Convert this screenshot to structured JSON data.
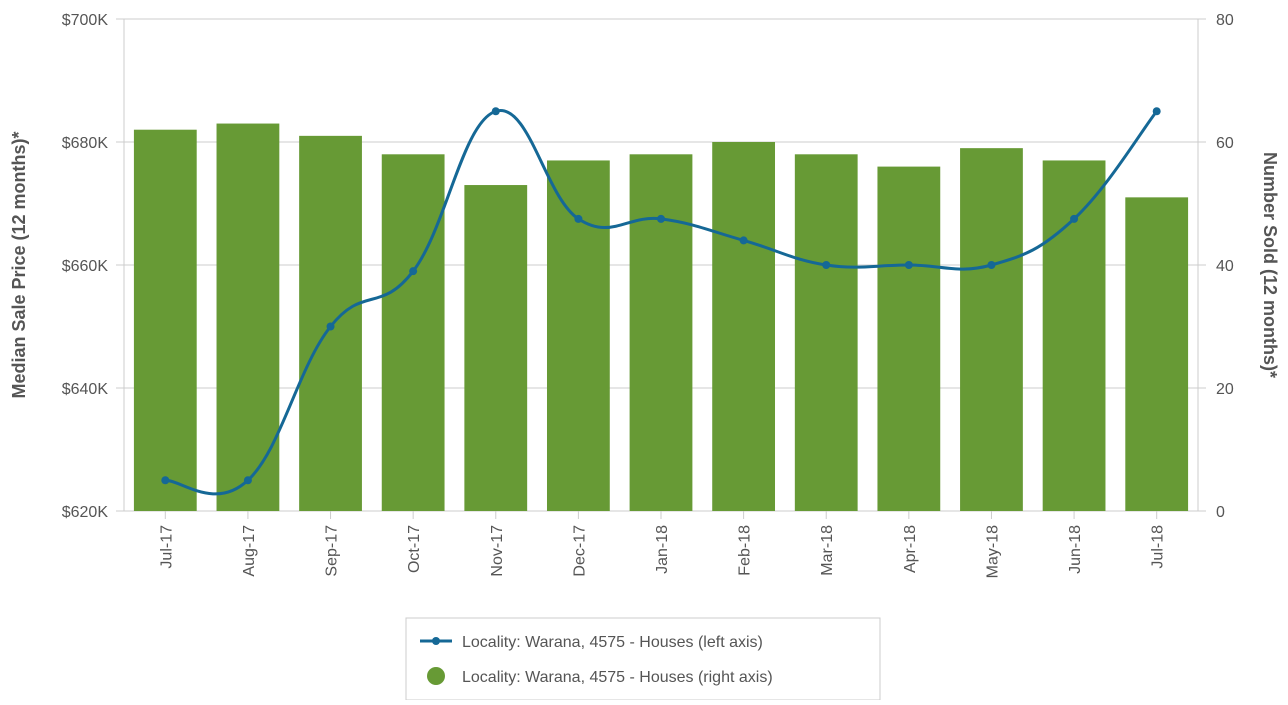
{
  "chart_data": {
    "type": "bar-line",
    "categories": [
      "Jul-17",
      "Aug-17",
      "Sep-17",
      "Oct-17",
      "Nov-17",
      "Dec-17",
      "Jan-18",
      "Feb-18",
      "Mar-18",
      "Apr-18",
      "May-18",
      "Jun-18",
      "Jul-18"
    ],
    "series": [
      {
        "name": "Locality: Warana, 4575 - Houses (left axis)",
        "type": "line",
        "axis": "y",
        "color": "#156896",
        "values": [
          625000,
          625000,
          650000,
          659000,
          685000,
          667500,
          667500,
          664000,
          660000,
          660000,
          660000,
          667500,
          685000
        ]
      },
      {
        "name": "Locality: Warana, 4575 - Houses (right axis)",
        "type": "bar",
        "axis": "y2",
        "color": "#679a35",
        "values": [
          62,
          63,
          61,
          58,
          53,
          57,
          58,
          60,
          58,
          56,
          59,
          57,
          51
        ]
      }
    ],
    "ylabel": "Median Sale Price (12 months)*",
    "y2label": "Number Sold (12 months)*",
    "ylim": [
      620000,
      700000
    ],
    "yticks": [
      {
        "value": 620000,
        "label": "$620K"
      },
      {
        "value": 640000,
        "label": "$640K"
      },
      {
        "value": 660000,
        "label": "$660K"
      },
      {
        "value": 680000,
        "label": "$680K"
      },
      {
        "value": 700000,
        "label": "$700K"
      }
    ],
    "y2lim": [
      0,
      80
    ],
    "y2ticks": [
      0,
      20,
      40,
      60,
      80
    ],
    "grid": true,
    "legend": "bottom"
  }
}
